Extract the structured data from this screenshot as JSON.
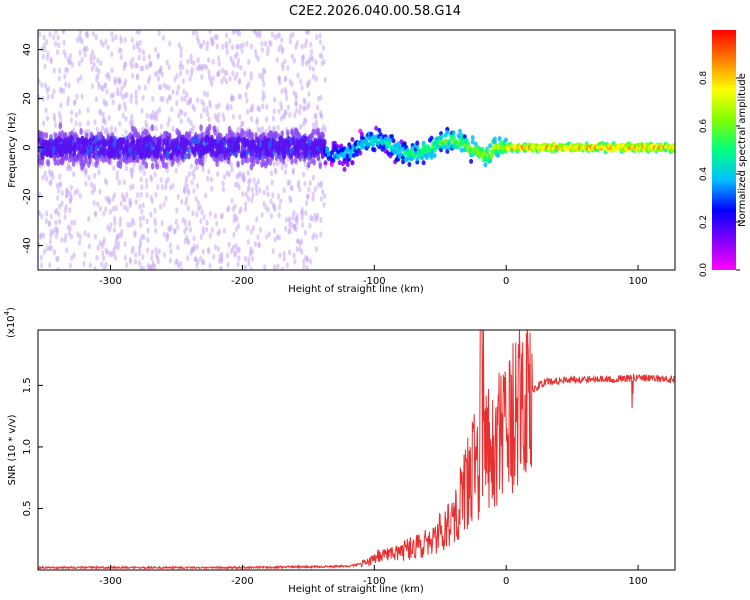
{
  "title": "C2E2.2026.040.00.58.G14",
  "colors": {
    "snr_line": "#e83030",
    "axis": "#000000",
    "background": "#ffffff"
  },
  "chart_data": [
    {
      "type": "heatmap",
      "title": "C2E2.2026.040.00.58.G14",
      "xlabel": "Height of straight line (km)",
      "ylabel": "Frequency (Hz)",
      "xlim": [
        -355,
        128
      ],
      "ylim": [
        -50,
        48
      ],
      "xticks": [
        -300,
        -200,
        -100,
        0,
        100
      ],
      "yticks": [
        -40,
        -20,
        0,
        20,
        40
      ],
      "colorbar": {
        "label": "Normalized spectral amplitude",
        "range": [
          0,
          1
        ],
        "ticks": [
          "0.0",
          "0.2",
          "0.4",
          "0.6",
          "0.8"
        ],
        "colormap": [
          "#ff00ff",
          "#8000ff",
          "#0000ff",
          "#00c0ff",
          "#00ff80",
          "#80ff00",
          "#ffff00",
          "#ff8000",
          "#ff0000"
        ]
      },
      "features": {
        "noise_region_x": [
          -355,
          -137
        ],
        "signal_region_x": [
          -137,
          128
        ],
        "signal_center_freq_hz": 0
      }
    },
    {
      "type": "line",
      "xlabel": "Height of straight line (km)",
      "ylabel": "SNR (10 * v/v)",
      "scale_label": "(x10",
      "scale_exp": "4",
      "xlim": [
        -355,
        128
      ],
      "ylim": [
        0,
        1.95
      ],
      "xticks": [
        -300,
        -200,
        -100,
        0,
        100
      ],
      "yticks": [
        0.5,
        1.0,
        1.5
      ],
      "ytick_labels": [
        "0.5",
        "1.0",
        "1.5"
      ],
      "series": [
        {
          "name": "SNR",
          "x": [
            -355,
            -300,
            -200,
            -120,
            -105,
            -100,
            -90,
            -80,
            -70,
            -60,
            -50,
            -45,
            -40,
            -35,
            -30,
            -25,
            -20,
            -18,
            -15,
            -10,
            -5,
            0,
            5,
            10,
            15,
            20,
            25,
            30,
            40,
            50,
            60,
            80,
            100,
            128
          ],
          "y": [
            0.02,
            0.02,
            0.02,
            0.03,
            0.06,
            0.1,
            0.13,
            0.15,
            0.18,
            0.22,
            0.3,
            0.38,
            0.45,
            0.55,
            0.7,
            0.82,
            0.92,
            1.0,
            0.95,
            1.0,
            1.05,
            1.1,
            1.2,
            1.3,
            1.38,
            1.45,
            1.5,
            1.53,
            1.54,
            1.55,
            1.55,
            1.55,
            1.56,
            1.55
          ]
        }
      ]
    }
  ]
}
